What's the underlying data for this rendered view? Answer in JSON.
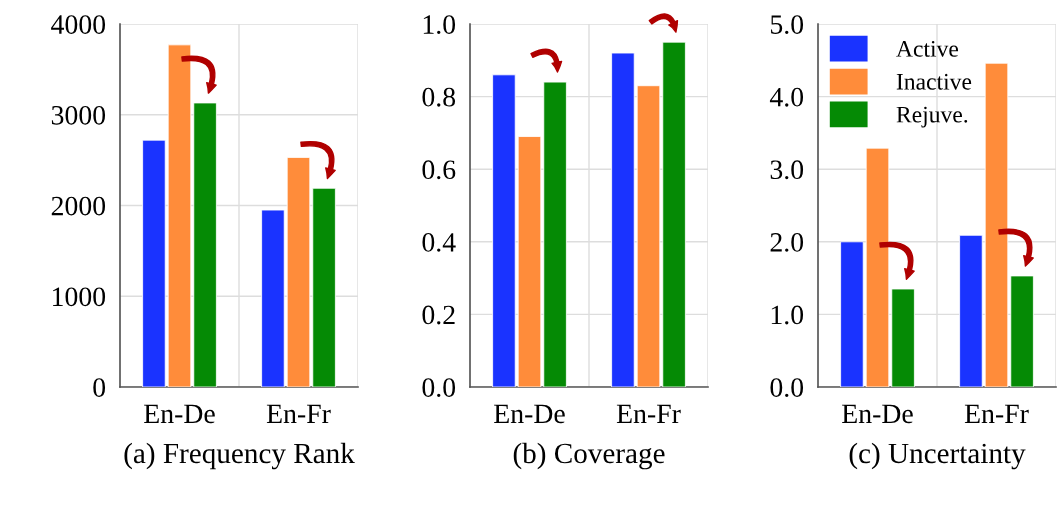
{
  "chart_data": [
    {
      "type": "bar",
      "xlabel": "(a) Frequency Rank",
      "categories": [
        "En-De",
        "En-Fr"
      ],
      "ylim": [
        0,
        4000
      ],
      "yticks": [
        0,
        1000,
        2000,
        3000,
        4000
      ],
      "grid": true,
      "series": [
        {
          "color": "#1a33ff",
          "values": [
            2720,
            1950
          ]
        },
        {
          "color": "#ff8c3a",
          "values": [
            3770,
            2530
          ]
        },
        {
          "color": "#058a05",
          "values": [
            3130,
            2190
          ]
        }
      ]
    },
    {
      "type": "bar",
      "xlabel": "(b) Coverage",
      "categories": [
        "En-De",
        "En-Fr"
      ],
      "ylim": [
        0,
        1.0
      ],
      "yticks": [
        {
          "value": 0,
          "label": "0.0"
        },
        0.2,
        0.4,
        0.6,
        0.8,
        {
          "value": 1,
          "label": "1.0"
        }
      ],
      "grid": true,
      "series": [
        {
          "color": "#1a33ff",
          "values": [
            0.86,
            0.92
          ]
        },
        {
          "color": "#ff8c3a",
          "values": [
            0.69,
            0.83
          ]
        },
        {
          "color": "#058a05",
          "values": [
            0.84,
            0.95
          ]
        }
      ]
    },
    {
      "type": "bar",
      "xlabel": "(c) Uncertainty",
      "categories": [
        "En-De",
        "En-Fr"
      ],
      "ylim": [
        0,
        5.0
      ],
      "yticks": [
        {
          "value": 0,
          "label": "0.0"
        },
        {
          "value": 1,
          "label": "1.0"
        },
        {
          "value": 2,
          "label": "2.0"
        },
        {
          "value": 3,
          "label": "3.0"
        },
        {
          "value": 4,
          "label": "4.0"
        },
        {
          "value": 5,
          "label": "5.0"
        }
      ],
      "grid": true,
      "legend": "top left",
      "series": [
        {
          "name": "Active",
          "color": "#1a33ff",
          "values": [
            2.0,
            2.09
          ]
        },
        {
          "name": "Inactive",
          "color": "#ff8c3a",
          "values": [
            3.29,
            4.46
          ]
        },
        {
          "name": "Rejuve.",
          "color": "#058a05",
          "values": [
            1.35,
            1.53
          ]
        }
      ]
    }
  ]
}
